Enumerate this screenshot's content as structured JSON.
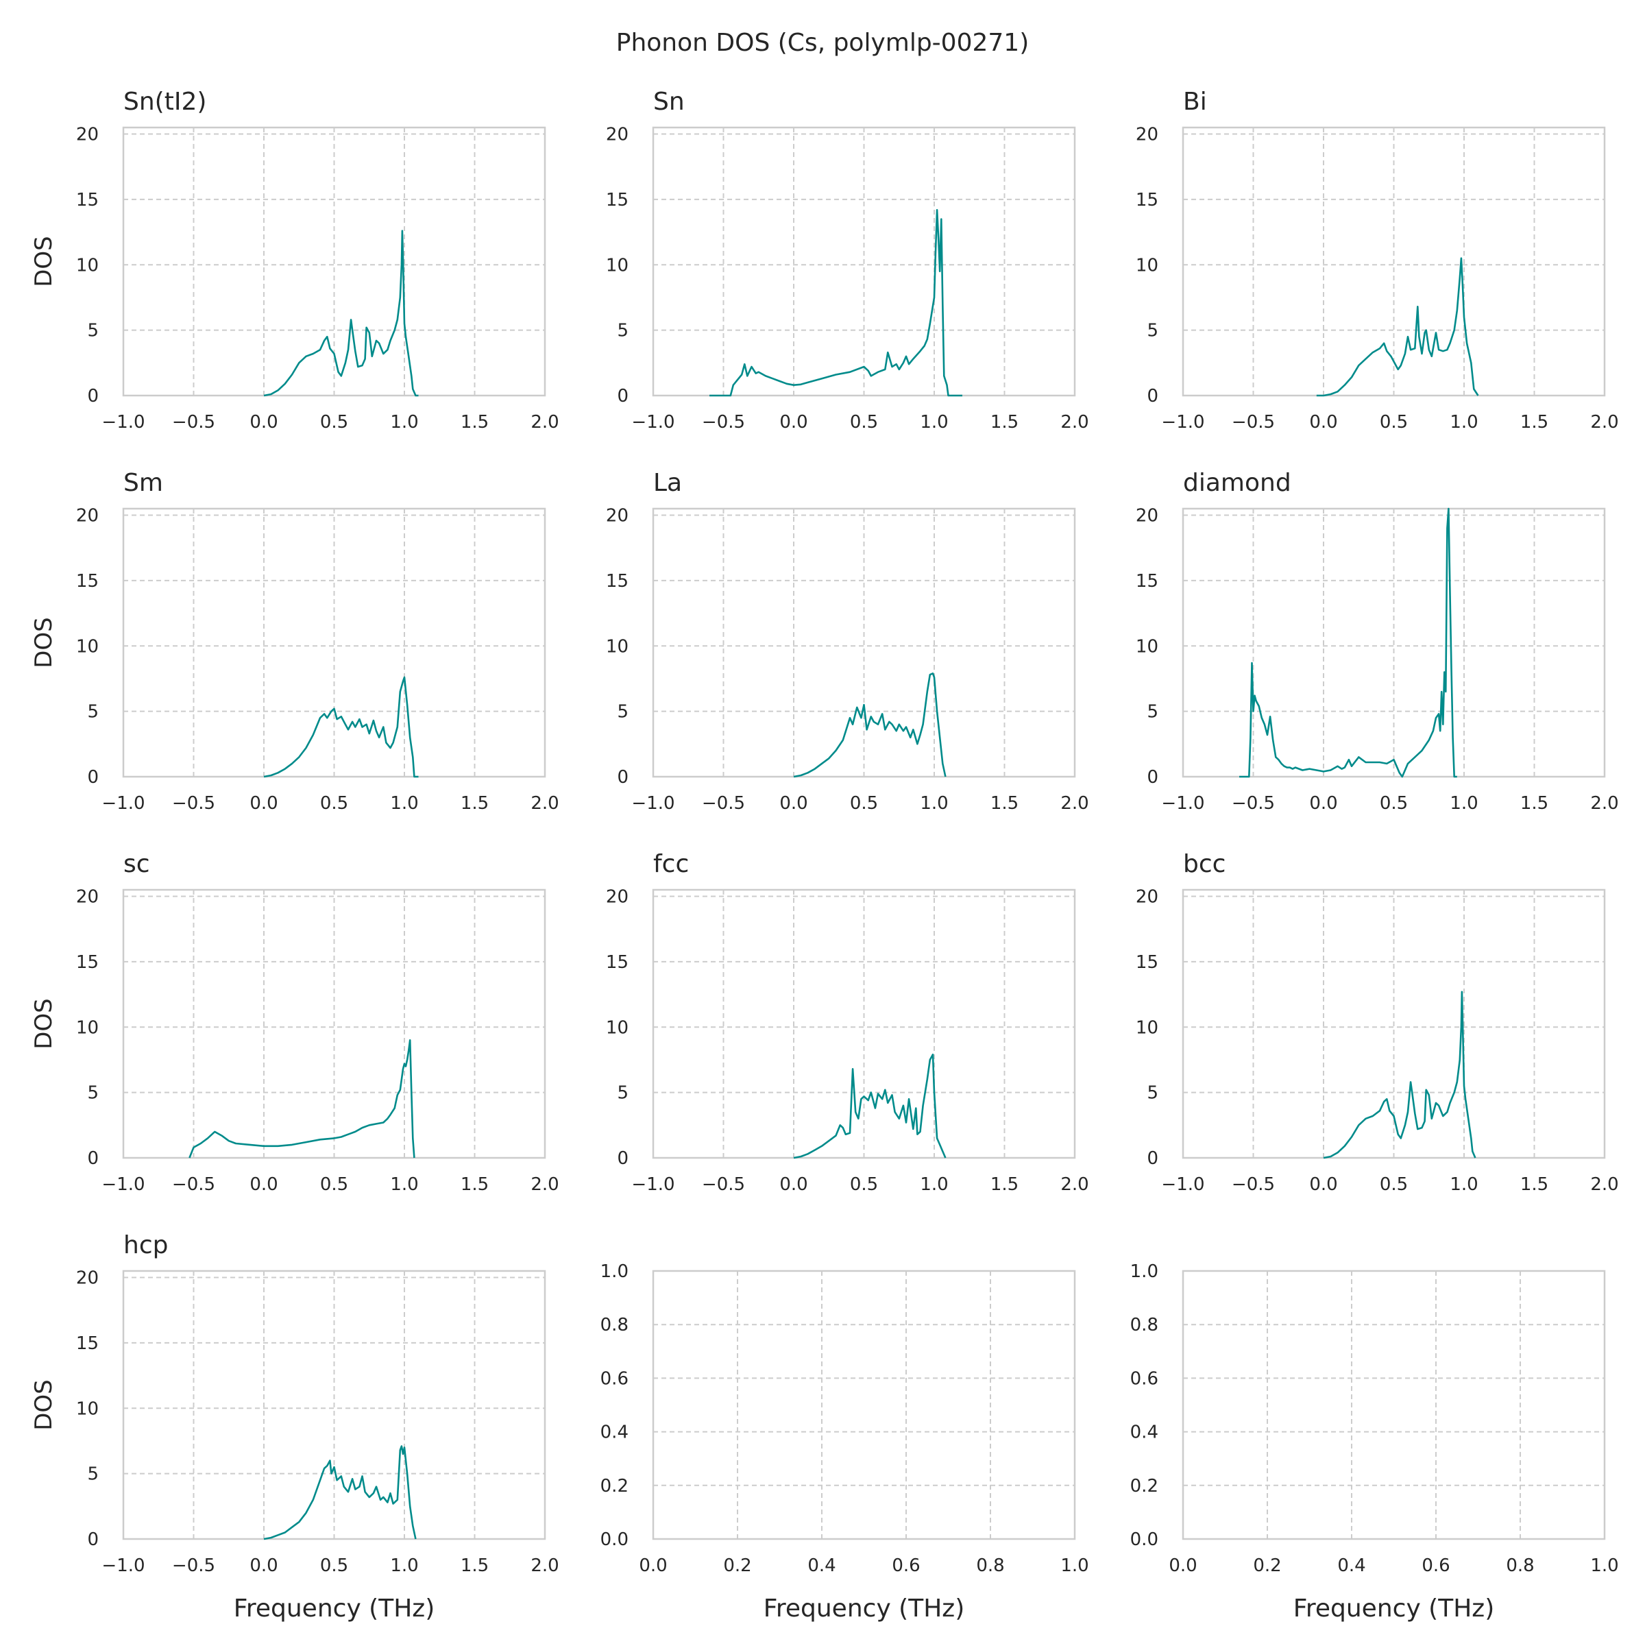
{
  "figure": {
    "title": "Phonon DOS (Cs, polymlp-00271)",
    "line_color": "#008b8b",
    "grid_color": "#cccccc",
    "spine_color": "#cccccc",
    "text_color": "#262626"
  },
  "chart_data": [
    {
      "type": "line",
      "title": "Sn(tI2)",
      "xlabel": "",
      "ylabel": "DOS",
      "xlim": [
        -1.0,
        2.0
      ],
      "ylim": [
        0,
        20.5
      ],
      "xticks": [
        "−1.0",
        "−0.5",
        "0.0",
        "0.5",
        "1.0",
        "1.5",
        "2.0"
      ],
      "yticks": [
        "0",
        "5",
        "10",
        "15",
        "20"
      ],
      "grid": true,
      "x": [
        0.0,
        0.05,
        0.1,
        0.15,
        0.2,
        0.25,
        0.3,
        0.35,
        0.4,
        0.43,
        0.45,
        0.47,
        0.5,
        0.53,
        0.55,
        0.58,
        0.6,
        0.62,
        0.63,
        0.65,
        0.67,
        0.7,
        0.72,
        0.73,
        0.75,
        0.77,
        0.8,
        0.82,
        0.85,
        0.88,
        0.9,
        0.93,
        0.95,
        0.97,
        0.98,
        0.985,
        0.99,
        1.0,
        1.01,
        1.03,
        1.05,
        1.06,
        1.08,
        1.1
      ],
      "y": [
        0.0,
        0.1,
        0.4,
        0.9,
        1.6,
        2.5,
        3.0,
        3.2,
        3.5,
        4.2,
        4.5,
        3.6,
        3.2,
        1.8,
        1.5,
        2.5,
        3.5,
        5.8,
        5.0,
        3.4,
        2.2,
        2.3,
        2.8,
        5.2,
        4.8,
        3.0,
        4.2,
        4.0,
        3.2,
        3.5,
        4.2,
        5.0,
        5.8,
        7.5,
        10.0,
        12.6,
        10.5,
        5.5,
        4.5,
        3.0,
        1.5,
        0.5,
        0.0,
        0.0
      ]
    },
    {
      "type": "line",
      "title": "Sn",
      "xlabel": "",
      "ylabel": "",
      "xlim": [
        -1.0,
        2.0
      ],
      "ylim": [
        0,
        20.5
      ],
      "xticks": [
        "−1.0",
        "−0.5",
        "0.0",
        "0.5",
        "1.0",
        "1.5",
        "2.0"
      ],
      "yticks": [
        "0",
        "5",
        "10",
        "15",
        "20"
      ],
      "grid": true,
      "x": [
        -0.6,
        -0.45,
        -0.43,
        -0.4,
        -0.37,
        -0.35,
        -0.33,
        -0.3,
        -0.27,
        -0.25,
        -0.2,
        -0.15,
        -0.1,
        -0.05,
        0.0,
        0.05,
        0.1,
        0.2,
        0.3,
        0.4,
        0.5,
        0.53,
        0.55,
        0.6,
        0.65,
        0.67,
        0.7,
        0.73,
        0.75,
        0.78,
        0.8,
        0.82,
        0.85,
        0.9,
        0.93,
        0.95,
        0.97,
        1.0,
        1.01,
        1.02,
        1.03,
        1.04,
        1.05,
        1.06,
        1.07,
        1.09,
        1.1,
        1.2
      ],
      "y": [
        0.0,
        0.0,
        0.8,
        1.2,
        1.6,
        2.4,
        1.5,
        2.2,
        1.7,
        1.8,
        1.5,
        1.3,
        1.1,
        0.9,
        0.8,
        0.85,
        1.0,
        1.3,
        1.6,
        1.8,
        2.2,
        1.9,
        1.5,
        1.8,
        2.0,
        3.3,
        2.2,
        2.4,
        2.0,
        2.5,
        3.0,
        2.4,
        2.8,
        3.4,
        3.8,
        4.3,
        5.5,
        7.5,
        11.0,
        14.2,
        12.0,
        9.5,
        13.5,
        7.0,
        1.5,
        0.8,
        0.0,
        0.0
      ]
    },
    {
      "type": "line",
      "title": "Bi",
      "xlabel": "",
      "ylabel": "",
      "xlim": [
        -1.0,
        2.0
      ],
      "ylim": [
        0,
        20.5
      ],
      "xticks": [
        "−1.0",
        "−0.5",
        "0.0",
        "0.5",
        "1.0",
        "1.5",
        "2.0"
      ],
      "yticks": [
        "0",
        "5",
        "10",
        "15",
        "20"
      ],
      "grid": true,
      "x": [
        -0.05,
        0.0,
        0.05,
        0.1,
        0.15,
        0.2,
        0.25,
        0.3,
        0.35,
        0.4,
        0.43,
        0.45,
        0.48,
        0.5,
        0.53,
        0.55,
        0.58,
        0.6,
        0.62,
        0.65,
        0.67,
        0.68,
        0.7,
        0.72,
        0.73,
        0.75,
        0.77,
        0.8,
        0.82,
        0.85,
        0.88,
        0.9,
        0.93,
        0.95,
        0.97,
        0.98,
        0.99,
        1.0,
        1.02,
        1.05,
        1.07,
        1.1
      ],
      "y": [
        0.0,
        0.0,
        0.1,
        0.3,
        0.8,
        1.4,
        2.3,
        2.8,
        3.3,
        3.6,
        4.0,
        3.4,
        3.0,
        2.6,
        2.0,
        2.3,
        3.2,
        4.5,
        3.5,
        3.6,
        6.8,
        4.5,
        3.2,
        4.8,
        5.0,
        3.5,
        3.0,
        4.8,
        3.5,
        3.4,
        3.5,
        4.0,
        5.0,
        6.5,
        9.0,
        10.5,
        8.5,
        6.0,
        4.0,
        2.5,
        0.5,
        0.0
      ]
    },
    {
      "type": "line",
      "title": "Sm",
      "xlabel": "",
      "ylabel": "DOS",
      "xlim": [
        -1.0,
        2.0
      ],
      "ylim": [
        0,
        20.5
      ],
      "xticks": [
        "−1.0",
        "−0.5",
        "0.0",
        "0.5",
        "1.0",
        "1.5",
        "2.0"
      ],
      "yticks": [
        "0",
        "5",
        "10",
        "15",
        "20"
      ],
      "grid": true,
      "x": [
        0.0,
        0.05,
        0.1,
        0.15,
        0.2,
        0.25,
        0.3,
        0.35,
        0.4,
        0.43,
        0.45,
        0.48,
        0.5,
        0.52,
        0.55,
        0.58,
        0.6,
        0.63,
        0.65,
        0.68,
        0.7,
        0.73,
        0.75,
        0.78,
        0.8,
        0.82,
        0.85,
        0.87,
        0.9,
        0.92,
        0.95,
        0.97,
        0.99,
        1.0,
        1.02,
        1.04,
        1.06,
        1.07,
        1.1
      ],
      "y": [
        0.0,
        0.1,
        0.3,
        0.6,
        1.0,
        1.5,
        2.2,
        3.2,
        4.5,
        4.8,
        4.5,
        5.0,
        5.2,
        4.4,
        4.6,
        4.0,
        3.6,
        4.2,
        3.8,
        4.4,
        3.8,
        4.0,
        3.3,
        4.3,
        3.5,
        3.0,
        3.8,
        2.6,
        2.2,
        2.6,
        3.8,
        6.5,
        7.3,
        7.6,
        5.5,
        3.0,
        1.5,
        0.0,
        0.0
      ]
    },
    {
      "type": "line",
      "title": "La",
      "xlabel": "",
      "ylabel": "",
      "xlim": [
        -1.0,
        2.0
      ],
      "ylim": [
        0,
        20.5
      ],
      "xticks": [
        "−1.0",
        "−0.5",
        "0.0",
        "0.5",
        "1.0",
        "1.5",
        "2.0"
      ],
      "yticks": [
        "0",
        "5",
        "10",
        "15",
        "20"
      ],
      "grid": true,
      "x": [
        0.0,
        0.05,
        0.1,
        0.15,
        0.2,
        0.25,
        0.3,
        0.35,
        0.4,
        0.42,
        0.45,
        0.48,
        0.5,
        0.52,
        0.55,
        0.57,
        0.6,
        0.63,
        0.65,
        0.68,
        0.7,
        0.73,
        0.75,
        0.78,
        0.8,
        0.83,
        0.85,
        0.88,
        0.9,
        0.92,
        0.95,
        0.97,
        0.99,
        1.0,
        1.02,
        1.04,
        1.06,
        1.08
      ],
      "y": [
        0.0,
        0.1,
        0.3,
        0.6,
        1.0,
        1.4,
        2.0,
        2.8,
        4.5,
        4.0,
        5.3,
        4.5,
        5.5,
        3.6,
        4.6,
        4.2,
        4.0,
        4.8,
        3.6,
        4.2,
        4.0,
        3.5,
        4.0,
        3.5,
        3.8,
        3.0,
        3.6,
        2.5,
        3.2,
        4.0,
        6.5,
        7.8,
        7.9,
        7.6,
        5.0,
        3.0,
        1.0,
        0.0
      ]
    },
    {
      "type": "line",
      "title": "diamond",
      "xlabel": "",
      "ylabel": "",
      "xlim": [
        -1.0,
        2.0
      ],
      "ylim": [
        0,
        20.5
      ],
      "xticks": [
        "−1.0",
        "−0.5",
        "0.0",
        "0.5",
        "1.0",
        "1.5",
        "2.0"
      ],
      "yticks": [
        "0",
        "5",
        "10",
        "15",
        "20"
      ],
      "grid": true,
      "x": [
        -0.6,
        -0.53,
        -0.52,
        -0.51,
        -0.5,
        -0.49,
        -0.48,
        -0.46,
        -0.44,
        -0.42,
        -0.4,
        -0.38,
        -0.36,
        -0.34,
        -0.32,
        -0.3,
        -0.28,
        -0.26,
        -0.24,
        -0.22,
        -0.2,
        -0.15,
        -0.1,
        -0.05,
        0.0,
        0.05,
        0.1,
        0.13,
        0.15,
        0.18,
        0.2,
        0.25,
        0.3,
        0.4,
        0.45,
        0.5,
        0.52,
        0.54,
        0.56,
        0.58,
        0.6,
        0.65,
        0.7,
        0.75,
        0.78,
        0.8,
        0.82,
        0.83,
        0.84,
        0.85,
        0.86,
        0.87,
        0.88,
        0.89,
        0.9,
        0.91,
        0.92,
        0.93,
        0.95
      ],
      "y": [
        0.0,
        0.0,
        3.0,
        8.7,
        5.0,
        6.2,
        5.8,
        5.4,
        4.5,
        4.0,
        3.2,
        4.6,
        2.8,
        1.5,
        1.3,
        1.0,
        0.8,
        0.7,
        0.7,
        0.6,
        0.7,
        0.5,
        0.6,
        0.5,
        0.4,
        0.5,
        0.8,
        0.6,
        0.7,
        1.3,
        0.8,
        1.5,
        1.1,
        1.1,
        1.0,
        1.3,
        0.8,
        0.3,
        0.0,
        0.5,
        1.0,
        1.5,
        2.0,
        2.8,
        3.5,
        4.5,
        4.8,
        3.5,
        6.5,
        4.0,
        8.0,
        6.5,
        19.0,
        20.5,
        14.0,
        8.0,
        3.0,
        0.0,
        0.0
      ]
    },
    {
      "type": "line",
      "title": "sc",
      "xlabel": "",
      "ylabel": "DOS",
      "xlim": [
        -1.0,
        2.0
      ],
      "ylim": [
        0,
        20.5
      ],
      "xticks": [
        "−1.0",
        "−0.5",
        "0.0",
        "0.5",
        "1.0",
        "1.5",
        "2.0"
      ],
      "yticks": [
        "0",
        "5",
        "10",
        "15",
        "20"
      ],
      "grid": true,
      "x": [
        -0.53,
        -0.5,
        -0.45,
        -0.4,
        -0.35,
        -0.3,
        -0.25,
        -0.2,
        -0.1,
        0.0,
        0.1,
        0.2,
        0.3,
        0.4,
        0.5,
        0.55,
        0.6,
        0.65,
        0.7,
        0.75,
        0.8,
        0.85,
        0.88,
        0.9,
        0.93,
        0.95,
        0.97,
        0.99,
        1.0,
        1.01,
        1.02,
        1.03,
        1.04,
        1.05,
        1.06,
        1.07
      ],
      "y": [
        0.0,
        0.8,
        1.1,
        1.5,
        2.0,
        1.7,
        1.3,
        1.1,
        1.0,
        0.9,
        0.9,
        1.0,
        1.2,
        1.4,
        1.5,
        1.6,
        1.8,
        2.0,
        2.3,
        2.5,
        2.6,
        2.7,
        3.0,
        3.3,
        3.8,
        4.8,
        5.2,
        6.8,
        7.2,
        7.0,
        7.5,
        8.2,
        9.0,
        5.0,
        1.5,
        0.0
      ]
    },
    {
      "type": "line",
      "title": "fcc",
      "xlabel": "",
      "ylabel": "",
      "xlim": [
        -1.0,
        2.0
      ],
      "ylim": [
        0,
        20.5
      ],
      "xticks": [
        "−1.0",
        "−0.5",
        "0.0",
        "0.5",
        "1.0",
        "1.5",
        "2.0"
      ],
      "yticks": [
        "0",
        "5",
        "10",
        "15",
        "20"
      ],
      "grid": true,
      "x": [
        0.0,
        0.05,
        0.1,
        0.15,
        0.2,
        0.25,
        0.3,
        0.33,
        0.35,
        0.37,
        0.4,
        0.42,
        0.44,
        0.46,
        0.48,
        0.5,
        0.53,
        0.55,
        0.58,
        0.6,
        0.63,
        0.65,
        0.67,
        0.7,
        0.72,
        0.75,
        0.78,
        0.8,
        0.82,
        0.85,
        0.87,
        0.88,
        0.9,
        0.92,
        0.95,
        0.97,
        0.99,
        1.0,
        1.02,
        1.04,
        1.06,
        1.08
      ],
      "y": [
        0.0,
        0.1,
        0.3,
        0.6,
        0.9,
        1.3,
        1.7,
        2.5,
        2.3,
        1.8,
        1.9,
        6.8,
        3.5,
        3.0,
        4.5,
        4.7,
        4.4,
        5.0,
        3.8,
        4.9,
        4.5,
        5.2,
        4.2,
        4.8,
        3.5,
        3.0,
        4.0,
        2.7,
        4.5,
        2.2,
        3.8,
        1.8,
        2.0,
        4.0,
        6.0,
        7.5,
        7.9,
        5.0,
        1.5,
        1.0,
        0.5,
        0.0
      ]
    },
    {
      "type": "line",
      "title": "bcc",
      "xlabel": "",
      "ylabel": "",
      "xlim": [
        -1.0,
        2.0
      ],
      "ylim": [
        0,
        20.5
      ],
      "xticks": [
        "−1.0",
        "−0.5",
        "0.0",
        "0.5",
        "1.0",
        "1.5",
        "2.0"
      ],
      "yticks": [
        "0",
        "5",
        "10",
        "15",
        "20"
      ],
      "grid": true,
      "x": [
        0.0,
        0.05,
        0.1,
        0.15,
        0.2,
        0.25,
        0.3,
        0.35,
        0.4,
        0.43,
        0.45,
        0.47,
        0.5,
        0.53,
        0.55,
        0.58,
        0.6,
        0.62,
        0.63,
        0.65,
        0.67,
        0.7,
        0.72,
        0.73,
        0.75,
        0.77,
        0.8,
        0.82,
        0.85,
        0.88,
        0.9,
        0.93,
        0.95,
        0.97,
        0.98,
        0.985,
        0.99,
        1.0,
        1.01,
        1.03,
        1.05,
        1.06,
        1.08
      ],
      "y": [
        0.0,
        0.1,
        0.4,
        0.9,
        1.6,
        2.5,
        3.0,
        3.2,
        3.6,
        4.3,
        4.5,
        3.6,
        3.2,
        1.8,
        1.5,
        2.5,
        3.5,
        5.8,
        5.0,
        3.4,
        2.2,
        2.3,
        2.8,
        5.2,
        4.8,
        3.0,
        4.2,
        4.0,
        3.2,
        3.5,
        4.2,
        5.0,
        5.8,
        7.5,
        10.0,
        12.7,
        10.5,
        5.5,
        4.5,
        3.0,
        1.5,
        0.5,
        0.0
      ]
    },
    {
      "type": "line",
      "title": "hcp",
      "xlabel": "Frequency (THz)",
      "ylabel": "DOS",
      "xlim": [
        -1.0,
        2.0
      ],
      "ylim": [
        0,
        20.5
      ],
      "xticks": [
        "−1.0",
        "−0.5",
        "0.0",
        "0.5",
        "1.0",
        "1.5",
        "2.0"
      ],
      "yticks": [
        "0",
        "5",
        "10",
        "15",
        "20"
      ],
      "grid": true,
      "x": [
        0.0,
        0.05,
        0.1,
        0.15,
        0.2,
        0.25,
        0.3,
        0.35,
        0.4,
        0.43,
        0.45,
        0.47,
        0.48,
        0.5,
        0.52,
        0.55,
        0.57,
        0.6,
        0.63,
        0.65,
        0.68,
        0.7,
        0.72,
        0.75,
        0.78,
        0.8,
        0.83,
        0.85,
        0.88,
        0.9,
        0.92,
        0.95,
        0.97,
        0.98,
        0.99,
        1.0,
        1.02,
        1.04,
        1.06,
        1.08
      ],
      "y": [
        0.0,
        0.1,
        0.3,
        0.5,
        0.9,
        1.3,
        2.0,
        3.0,
        4.5,
        5.4,
        5.6,
        6.0,
        5.0,
        5.5,
        4.5,
        4.8,
        4.0,
        3.6,
        4.6,
        3.8,
        4.0,
        4.8,
        3.6,
        3.2,
        3.5,
        4.0,
        3.0,
        3.2,
        2.8,
        3.5,
        2.7,
        3.0,
        6.8,
        7.1,
        6.5,
        7.0,
        5.0,
        2.5,
        1.0,
        0.0
      ]
    },
    {
      "type": "line",
      "title": "",
      "xlabel": "Frequency (THz)",
      "ylabel": "",
      "xlim": [
        0.0,
        1.0
      ],
      "ylim": [
        0.0,
        1.0
      ],
      "xticks": [
        "0.0",
        "0.2",
        "0.4",
        "0.6",
        "0.8",
        "1.0"
      ],
      "yticks": [
        "0.0",
        "0.2",
        "0.4",
        "0.6",
        "0.8",
        "1.0"
      ],
      "grid": true,
      "x": [],
      "y": []
    },
    {
      "type": "line",
      "title": "",
      "xlabel": "Frequency (THz)",
      "ylabel": "",
      "xlim": [
        0.0,
        1.0
      ],
      "ylim": [
        0.0,
        1.0
      ],
      "xticks": [
        "0.0",
        "0.2",
        "0.4",
        "0.6",
        "0.8",
        "1.0"
      ],
      "yticks": [
        "0.0",
        "0.2",
        "0.4",
        "0.6",
        "0.8",
        "1.0"
      ],
      "grid": true,
      "x": [],
      "y": []
    }
  ]
}
